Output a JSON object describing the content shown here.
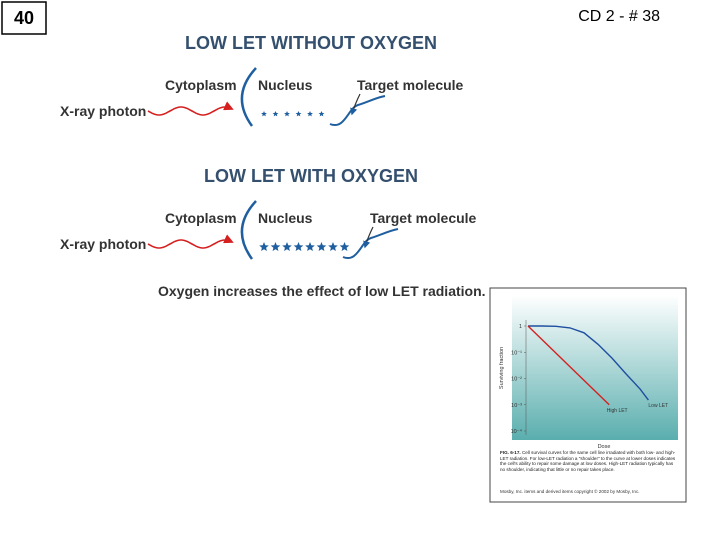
{
  "page_number": "40",
  "slide_ref": "CD 2 -  # 38",
  "panels": [
    {
      "title": "LOW LET WITHOUT OXYGEN",
      "cytoplasm": "Cytoplasm",
      "nucleus": "Nucleus",
      "target": "Target molecule",
      "photon": "X-ray photon"
    },
    {
      "title": "LOW LET WITH OXYGEN",
      "cytoplasm": "Cytoplasm",
      "nucleus": "Nucleus",
      "target": "Target molecule",
      "photon": "X-ray photon"
    }
  ],
  "caption": "Oxygen increases the effect of low LET radiation.",
  "figure": {
    "label": "FIG. 6-17.",
    "text": "Cell survival curves for the same cell line irradiated with both low- and high-LET radiation. For low-LET radiation a \"shoulder\" to the curve at lower doses indicates the cell's ability to repair some damage at low doses. High-LET radiation typically has no shoulder, indicating that little or no repair takes place.",
    "credit": "Mosby, Inc. items and derived items copyright © 2002 by Mosby, Inc."
  },
  "chart_data": {
    "type": "line",
    "y_label": "Surviving fraction",
    "x_label": "Dose",
    "log_y": true,
    "xlim": [
      0,
      10
    ],
    "ylim": [
      0.0001,
      1
    ],
    "yticks": [
      1,
      {
        "value": 0.1,
        "label": "10⁻¹"
      },
      {
        "value": 0.01,
        "label": "10⁻²"
      },
      {
        "value": 0.001,
        "label": "10⁻³"
      },
      {
        "value": 0.0001,
        "label": "10⁻⁴"
      }
    ],
    "series": [
      {
        "name": "Low LET",
        "color": "#1f4fa0",
        "x": [
          0,
          1,
          2,
          3,
          4,
          5,
          6,
          7,
          8,
          8.6
        ],
        "values": [
          1,
          1,
          0.97,
          0.85,
          0.55,
          0.2,
          0.06,
          0.015,
          0.004,
          0.0015
        ]
      },
      {
        "name": "High LET",
        "color": "#d62020",
        "x": [
          0,
          5.8
        ],
        "values": [
          1,
          0.001
        ]
      }
    ]
  }
}
